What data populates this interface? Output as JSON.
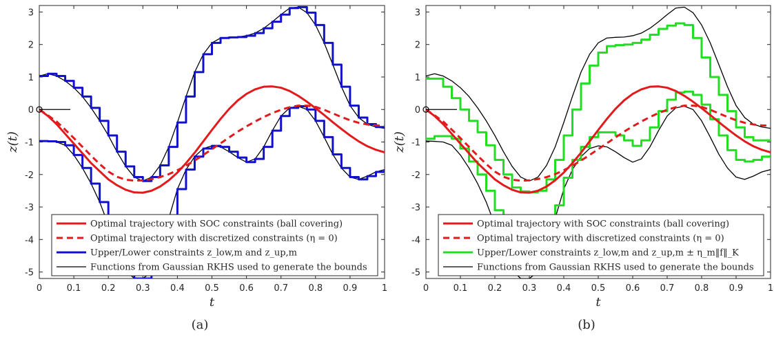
{
  "chart_data": [
    {
      "type": "line",
      "panel_label": "(a)",
      "xlabel": "t",
      "ylabel": "z(t)",
      "xlim": [
        0,
        1
      ],
      "ylim": [
        -5.2,
        3.2
      ],
      "xticks": [
        "0",
        "0.1",
        "0.2",
        "0.3",
        "0.4",
        "0.5",
        "0.6",
        "0.7",
        "0.8",
        "0.9",
        "1"
      ],
      "yticks": [
        "-5",
        "-4",
        "-3",
        "-2",
        "-1",
        "0",
        "1",
        "2",
        "3"
      ],
      "legend_position": "bottom",
      "legend": [
        {
          "text": "Optimal trajectory with SOC constraints (ball covering)",
          "color": "#e31a1c",
          "style": "solid"
        },
        {
          "text": "Optimal trajectory with discretized constraints (η = 0)",
          "color": "#e31a1c",
          "style": "dashed"
        },
        {
          "text": "Upper/Lower constraints z_low,m and z_up,m",
          "color": "#1111cc",
          "style": "solid"
        },
        {
          "text": "Functions from Gaussian RKHS used to generate the bounds",
          "color": "#000000",
          "style": "solid"
        }
      ],
      "x": [
        0,
        0.025,
        0.05,
        0.075,
        0.1,
        0.125,
        0.15,
        0.175,
        0.2,
        0.225,
        0.25,
        0.275,
        0.3,
        0.325,
        0.35,
        0.375,
        0.4,
        0.425,
        0.45,
        0.475,
        0.5,
        0.525,
        0.55,
        0.575,
        0.6,
        0.625,
        0.65,
        0.675,
        0.7,
        0.725,
        0.75,
        0.775,
        0.8,
        0.825,
        0.85,
        0.875,
        0.9,
        0.925,
        0.95,
        0.975,
        1
      ],
      "series": [
        {
          "name": "SOC",
          "color": "#e31a1c",
          "style": "solid",
          "values": [
            0,
            -0.2,
            -0.45,
            -0.75,
            -1.05,
            -1.35,
            -1.65,
            -1.9,
            -2.15,
            -2.33,
            -2.47,
            -2.55,
            -2.56,
            -2.5,
            -2.37,
            -2.18,
            -1.94,
            -1.65,
            -1.33,
            -0.98,
            -0.63,
            -0.29,
            0.02,
            0.28,
            0.48,
            0.62,
            0.7,
            0.71,
            0.67,
            0.57,
            0.42,
            0.24,
            0.04,
            -0.17,
            -0.39,
            -0.6,
            -0.8,
            -0.98,
            -1.13,
            -1.24,
            -1.32
          ]
        },
        {
          "name": "discretized",
          "color": "#e31a1c",
          "style": "dashed",
          "values": [
            0,
            -0.18,
            -0.37,
            -0.62,
            -0.88,
            -1.15,
            -1.42,
            -1.68,
            -1.91,
            -2.07,
            -2.16,
            -2.19,
            -2.18,
            -2.14,
            -2.08,
            -1.99,
            -1.87,
            -1.73,
            -1.57,
            -1.4,
            -1.22,
            -1.04,
            -0.86,
            -0.68,
            -0.52,
            -0.37,
            -0.23,
            -0.11,
            -0.01,
            0.07,
            0.12,
            0.12,
            0.08,
            -0.01,
            -0.12,
            -0.23,
            -0.33,
            -0.41,
            -0.46,
            -0.49,
            -0.5
          ]
        },
        {
          "name": "upper function",
          "color": "#000000",
          "style": "solid",
          "values": [
            1.03,
            1.1,
            1.03,
            0.88,
            0.67,
            0.4,
            0.05,
            -0.35,
            -0.8,
            -1.3,
            -1.75,
            -2.08,
            -2.2,
            -2.08,
            -1.72,
            -1.15,
            -0.4,
            0.4,
            1.15,
            1.7,
            2.05,
            2.2,
            2.22,
            2.23,
            2.27,
            2.35,
            2.5,
            2.7,
            2.92,
            3.12,
            3.15,
            2.98,
            2.6,
            2.05,
            1.38,
            0.7,
            0.12,
            -0.25,
            -0.45,
            -0.54,
            -0.58
          ]
        },
        {
          "name": "lower function",
          "color": "#000000",
          "style": "solid",
          "values": [
            -0.97,
            -0.98,
            -1.0,
            -1.1,
            -1.4,
            -1.8,
            -2.28,
            -2.85,
            -3.55,
            -4.3,
            -4.95,
            -5.2,
            -5.2,
            -5.0,
            -4.3,
            -3.35,
            -2.45,
            -1.85,
            -1.45,
            -1.2,
            -1.12,
            -1.15,
            -1.3,
            -1.48,
            -1.62,
            -1.52,
            -1.15,
            -0.65,
            -0.2,
            0.05,
            0.1,
            0.0,
            -0.35,
            -0.85,
            -1.38,
            -1.8,
            -2.08,
            -2.15,
            -2.05,
            -1.92,
            -1.85
          ]
        },
        {
          "name": "upper constraint",
          "color": "#1111cc",
          "style": "step",
          "values": [
            1.03,
            1.1,
            1.03,
            0.88,
            0.67,
            0.4,
            0.05,
            -0.35,
            -0.8,
            -1.3,
            -1.75,
            -2.08,
            -2.2,
            -2.08,
            -1.72,
            -1.15,
            -0.4,
            0.4,
            1.15,
            1.7,
            2.05,
            2.2,
            2.22,
            2.23,
            2.27,
            2.35,
            2.5,
            2.7,
            2.92,
            3.12,
            3.15,
            2.98,
            2.6,
            2.05,
            1.38,
            0.7,
            0.12,
            -0.25,
            -0.45,
            -0.54,
            -0.58
          ]
        },
        {
          "name": "lower constraint",
          "color": "#1111cc",
          "style": "step",
          "values": [
            -0.97,
            -0.98,
            -1.0,
            -1.1,
            -1.4,
            -1.8,
            -2.28,
            -2.85,
            -3.55,
            -4.3,
            -4.95,
            -5.2,
            -5.2,
            -5.0,
            -4.3,
            -3.35,
            -2.45,
            -1.85,
            -1.45,
            -1.2,
            -1.12,
            -1.15,
            -1.3,
            -1.48,
            -1.62,
            -1.52,
            -1.15,
            -0.65,
            -0.2,
            0.05,
            0.1,
            0.0,
            -0.35,
            -0.85,
            -1.38,
            -1.8,
            -2.08,
            -2.15,
            -2.05,
            -1.92,
            -1.85
          ]
        }
      ]
    },
    {
      "type": "line",
      "panel_label": "(b)",
      "xlabel": "t",
      "ylabel": "z(t)",
      "xlim": [
        0,
        1
      ],
      "ylim": [
        -5.2,
        3.2
      ],
      "xticks": [
        "0",
        "0.1",
        "0.2",
        "0.3",
        "0.4",
        "0.5",
        "0.6",
        "0.7",
        "0.8",
        "0.9",
        "1"
      ],
      "yticks": [
        "-5",
        "-4",
        "-3",
        "-2",
        "-1",
        "0",
        "1",
        "2",
        "3"
      ],
      "legend_position": "bottom",
      "legend": [
        {
          "text": "Optimal trajectory with SOC constraints (ball covering)",
          "color": "#e31a1c",
          "style": "solid"
        },
        {
          "text": "Optimal trajectory with discretized constraints (η = 0)",
          "color": "#e31a1c",
          "style": "dashed"
        },
        {
          "text": "Upper/Lower constraints z_low,m and z_up,m ± η_m‖f‖_K",
          "color": "#22dd22",
          "style": "solid"
        },
        {
          "text": "Functions from Gaussian RKHS used to generate the bounds",
          "color": "#000000",
          "style": "solid"
        }
      ],
      "x": [
        0,
        0.025,
        0.05,
        0.075,
        0.1,
        0.125,
        0.15,
        0.175,
        0.2,
        0.225,
        0.25,
        0.275,
        0.3,
        0.325,
        0.35,
        0.375,
        0.4,
        0.425,
        0.45,
        0.475,
        0.5,
        0.525,
        0.55,
        0.575,
        0.6,
        0.625,
        0.65,
        0.675,
        0.7,
        0.725,
        0.75,
        0.775,
        0.8,
        0.825,
        0.85,
        0.875,
        0.9,
        0.925,
        0.95,
        0.975,
        1
      ],
      "series": [
        {
          "name": "SOC",
          "color": "#e31a1c",
          "style": "solid",
          "values": [
            0,
            -0.2,
            -0.45,
            -0.75,
            -1.05,
            -1.35,
            -1.65,
            -1.9,
            -2.15,
            -2.33,
            -2.47,
            -2.55,
            -2.56,
            -2.5,
            -2.37,
            -2.18,
            -1.94,
            -1.65,
            -1.33,
            -0.98,
            -0.63,
            -0.29,
            0.02,
            0.28,
            0.48,
            0.62,
            0.7,
            0.71,
            0.67,
            0.57,
            0.42,
            0.24,
            0.04,
            -0.17,
            -0.39,
            -0.6,
            -0.8,
            -0.98,
            -1.13,
            -1.24,
            -1.32
          ]
        },
        {
          "name": "discretized",
          "color": "#e31a1c",
          "style": "dashed",
          "values": [
            0,
            -0.18,
            -0.37,
            -0.62,
            -0.88,
            -1.15,
            -1.42,
            -1.68,
            -1.91,
            -2.07,
            -2.16,
            -2.19,
            -2.18,
            -2.14,
            -2.08,
            -1.99,
            -1.87,
            -1.73,
            -1.57,
            -1.4,
            -1.22,
            -1.04,
            -0.86,
            -0.68,
            -0.52,
            -0.37,
            -0.23,
            -0.11,
            -0.01,
            0.07,
            0.12,
            0.12,
            0.08,
            -0.01,
            -0.12,
            -0.23,
            -0.33,
            -0.41,
            -0.46,
            -0.49,
            -0.5
          ]
        },
        {
          "name": "upper function",
          "color": "#000000",
          "style": "solid",
          "values": [
            1.03,
            1.1,
            1.03,
            0.88,
            0.67,
            0.4,
            0.05,
            -0.35,
            -0.8,
            -1.3,
            -1.75,
            -2.08,
            -2.2,
            -2.08,
            -1.72,
            -1.15,
            -0.4,
            0.4,
            1.15,
            1.7,
            2.05,
            2.2,
            2.22,
            2.23,
            2.27,
            2.35,
            2.5,
            2.7,
            2.92,
            3.12,
            3.15,
            2.98,
            2.6,
            2.05,
            1.38,
            0.7,
            0.12,
            -0.25,
            -0.45,
            -0.54,
            -0.58
          ]
        },
        {
          "name": "lower function",
          "color": "#000000",
          "style": "solid",
          "values": [
            -0.97,
            -0.98,
            -1.0,
            -1.1,
            -1.4,
            -1.8,
            -2.28,
            -2.85,
            -3.55,
            -4.3,
            -4.95,
            -5.2,
            -5.2,
            -5.0,
            -4.3,
            -3.35,
            -2.45,
            -1.85,
            -1.45,
            -1.2,
            -1.12,
            -1.15,
            -1.3,
            -1.48,
            -1.62,
            -1.52,
            -1.15,
            -0.65,
            -0.2,
            0.05,
            0.1,
            0.0,
            -0.35,
            -0.85,
            -1.38,
            -1.8,
            -2.08,
            -2.15,
            -2.05,
            -1.92,
            -1.85
          ]
        },
        {
          "name": "upper constraint",
          "color": "#22dd22",
          "style": "step",
          "values": [
            0.95,
            0.95,
            0.7,
            0.35,
            0.0,
            -0.35,
            -0.7,
            -1.1,
            -1.55,
            -2.0,
            -2.4,
            -2.52,
            -2.55,
            -2.5,
            -2.15,
            -1.55,
            -0.8,
            0.0,
            0.8,
            1.35,
            1.75,
            1.95,
            1.98,
            2.0,
            2.05,
            2.15,
            2.3,
            2.48,
            2.58,
            2.65,
            2.6,
            2.2,
            1.6,
            1.0,
            0.45,
            -0.05,
            -0.55,
            -0.85,
            -0.95,
            -0.95,
            -0.95
          ]
        },
        {
          "name": "lower constraint",
          "color": "#22dd22",
          "style": "step",
          "values": [
            -0.9,
            -0.82,
            -0.82,
            -0.9,
            -1.2,
            -1.6,
            -2.0,
            -2.5,
            -3.1,
            -3.75,
            -4.35,
            -4.65,
            -4.7,
            -4.45,
            -3.75,
            -2.95,
            -2.1,
            -1.55,
            -1.15,
            -0.85,
            -0.7,
            -0.7,
            -0.8,
            -0.95,
            -1.12,
            -0.95,
            -0.55,
            -0.05,
            0.3,
            0.52,
            0.55,
            0.45,
            0.15,
            -0.3,
            -0.8,
            -1.25,
            -1.55,
            -1.6,
            -1.55,
            -1.45,
            -1.4
          ]
        }
      ]
    }
  ]
}
